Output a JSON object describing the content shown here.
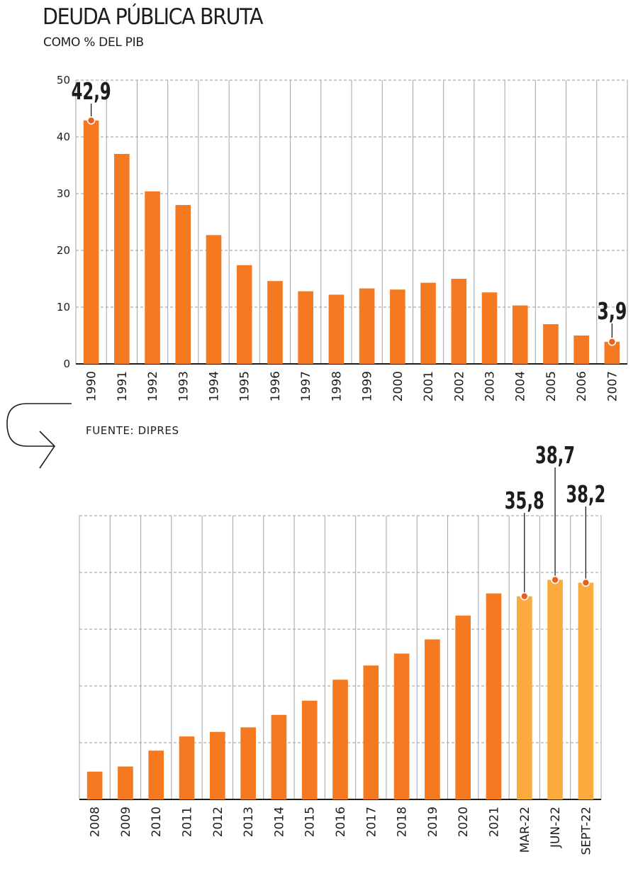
{
  "title": "DEUDA PÚBLICA BRUTA",
  "subtitle": "COMO % DEL PIB",
  "source": "FUENTE: DIPRES",
  "colors": {
    "bar": "#f47920",
    "bar_highlight": "#fbab3e",
    "text": "#1d1d1b",
    "grid": "#9a9a9a",
    "marker": "#e8601c"
  },
  "icons": {
    "continuation": "curved-arrow-icon"
  },
  "chart_data": [
    {
      "type": "bar",
      "title": "DEUDA PÚBLICA BRUTA",
      "subtitle": "COMO % DEL PIB",
      "categories": [
        "1990",
        "1991",
        "1992",
        "1993",
        "1994",
        "1995",
        "1996",
        "1997",
        "1998",
        "1999",
        "2000",
        "2001",
        "2002",
        "2003",
        "2004",
        "2005",
        "2006",
        "2007"
      ],
      "values": [
        42.9,
        37.0,
        30.4,
        28.0,
        22.7,
        17.4,
        14.6,
        12.8,
        12.2,
        13.3,
        13.1,
        14.3,
        15.0,
        12.6,
        10.3,
        7.0,
        5.0,
        3.9
      ],
      "yticks": [
        "0",
        "10",
        "20",
        "30",
        "40",
        "50"
      ],
      "ylim": [
        0,
        50
      ],
      "grid": true,
      "annotations": [
        {
          "index": 0,
          "label": "42,9"
        },
        {
          "index": 17,
          "label": "3,9"
        }
      ]
    },
    {
      "type": "bar",
      "categories": [
        "2008",
        "2009",
        "2010",
        "2011",
        "2012",
        "2013",
        "2014",
        "2015",
        "2016",
        "2017",
        "2018",
        "2019",
        "2020",
        "2021",
        "MAR-22",
        "JUN-22",
        "SEPT-22"
      ],
      "values": [
        4.9,
        5.8,
        8.6,
        11.1,
        11.9,
        12.7,
        14.9,
        17.4,
        21.1,
        23.6,
        25.7,
        28.2,
        32.4,
        36.3,
        35.8,
        38.7,
        38.2
      ],
      "highlight": [
        14,
        15,
        16
      ],
      "ylim": [
        0,
        50
      ],
      "grid": true,
      "annotations": [
        {
          "index": 14,
          "label": "35,8"
        },
        {
          "index": 15,
          "label": "38,7"
        },
        {
          "index": 16,
          "label": "38,2"
        }
      ]
    }
  ]
}
